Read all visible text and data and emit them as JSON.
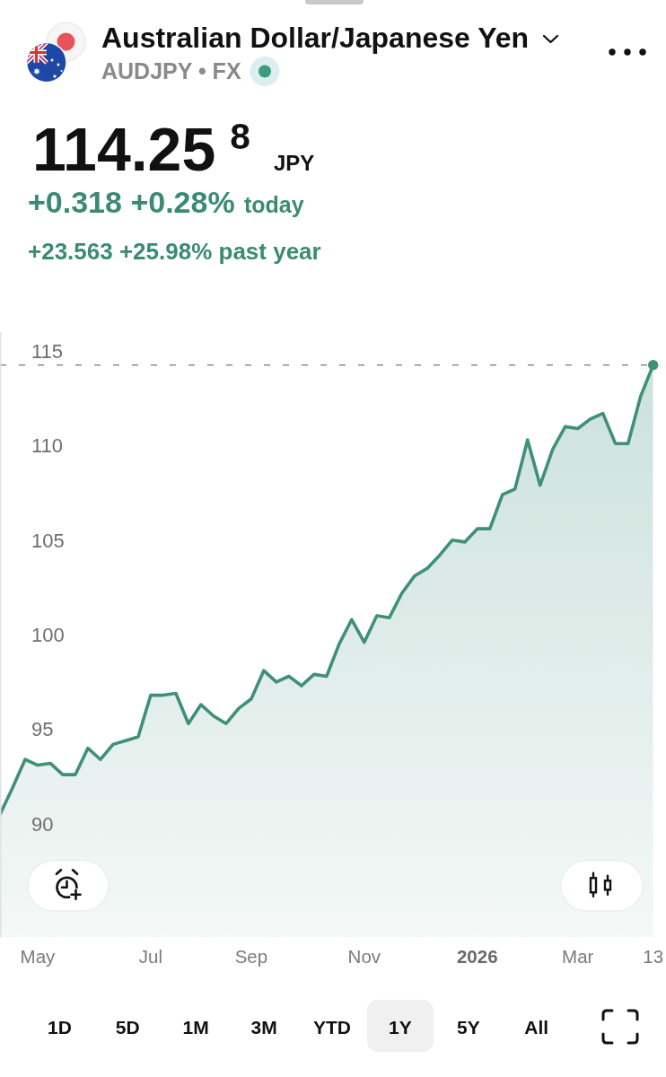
{
  "chart_data": {
    "type": "area",
    "title": "Australian Dollar/Japanese Yen",
    "subtitle": "AUDJPY • FX",
    "annotations": [
      "114.25$^{8}$",
      "JPY",
      "+0.318 +0.28%",
      "today",
      "+23.563 +25.98% past year",
      "1D",
      "5D",
      "1M",
      "3M",
      "YTD",
      "1Y",
      "5Y",
      "All"
    ],
    "x": [
      "2025-04-14",
      "2025-04-21",
      "2025-04-28",
      "2025-05-05",
      "2025-05-12",
      "2025-05-19",
      "2025-05-26",
      "2025-06-02",
      "2025-06-09",
      "2025-06-16",
      "2025-06-23",
      "2025-06-30",
      "2025-07-07",
      "2025-07-14",
      "2025-07-21",
      "2025-07-28",
      "2025-08-04",
      "2025-08-11",
      "2025-08-18",
      "2025-08-25",
      "2025-09-01",
      "2025-09-08",
      "2025-09-15",
      "2025-09-22",
      "2025-09-29",
      "2025-10-06",
      "2025-10-13",
      "2025-10-20",
      "2025-10-27",
      "2025-11-03",
      "2025-11-10",
      "2025-11-17",
      "2025-11-24",
      "2025-12-01",
      "2025-12-08",
      "2025-12-15",
      "2025-12-22",
      "2025-12-29",
      "2026-01-05",
      "2026-01-12",
      "2026-01-19",
      "2026-01-26",
      "2026-02-02",
      "2026-02-09",
      "2026-02-16",
      "2026-02-23",
      "2026-03-02",
      "2026-03-09",
      "2026-03-16",
      "2026-03-23",
      "2026-03-30",
      "2026-04-06",
      "2026-04-13"
    ],
    "series": [
      {
        "color": "#3f8f79",
        "values": [
          90.5,
          91.9,
          93.4,
          93.1,
          93.2,
          92.6,
          92.6,
          94.0,
          93.4,
          94.2,
          94.4,
          94.6,
          96.8,
          96.8,
          96.9,
          95.3,
          96.3,
          95.7,
          95.3,
          96.1,
          96.6,
          98.1,
          97.5,
          97.8,
          97.3,
          97.9,
          97.8,
          99.5,
          100.8,
          99.6,
          101.0,
          100.9,
          102.2,
          103.1,
          103.5,
          104.2,
          105.0,
          104.9,
          105.6,
          105.6,
          107.4,
          107.7,
          110.3,
          107.9,
          109.8,
          111.0,
          110.9,
          111.4,
          111.7,
          110.1,
          110.1,
          112.6,
          114.258
        ]
      },
      {
        "type": "scatter",
        "color": "#3f8f79",
        "marker": "circle",
        "x": [
          "2026-04-13"
        ],
        "values": [
          114.258
        ]
      }
    ],
    "xlim": [
      "2025-04-14",
      "2026-04-13"
    ],
    "ylim": [
      84,
      116
    ],
    "xticks": [
      {
        "value": "2025-05-05",
        "label": "May"
      },
      {
        "value": "2025-07-07",
        "label": "Jul"
      },
      {
        "value": "2025-09-01",
        "label": "Sep"
      },
      {
        "value": "2025-11-03",
        "label": "Nov"
      },
      {
        "value": "2026-01-05",
        "label": "2026"
      },
      {
        "value": "2026-03-02",
        "label": "Mar"
      },
      {
        "value": "2026-04-13",
        "label": "13"
      }
    ],
    "yticks": [
      90,
      95,
      100,
      105,
      110,
      115
    ],
    "ref_lines": [
      {
        "axis": "y",
        "value": 114.258,
        "line_style": "dashed",
        "color": "#8c8c8c"
      }
    ]
  }
}
